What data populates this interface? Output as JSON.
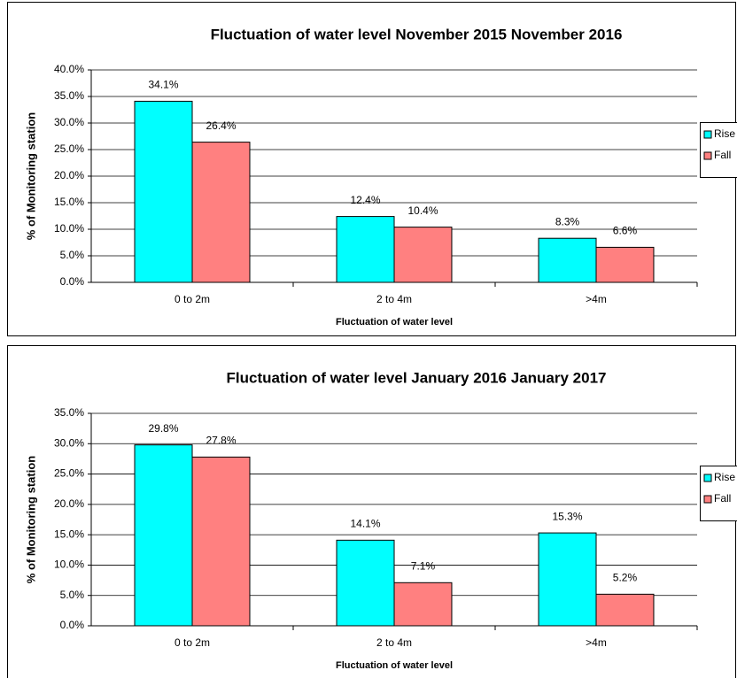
{
  "chart_data": [
    {
      "type": "bar",
      "title": "Fluctuation of water level November 2015 November 2016",
      "x_label": "Fluctuation of water level",
      "y_label": "% of Monitoring station",
      "categories": [
        "0 to 2m",
        "2 to 4m",
        ">4m"
      ],
      "series": [
        {
          "name": "Rise",
          "color": "#00ffff",
          "values": [
            34.1,
            12.4,
            8.3
          ],
          "value_labels": [
            "34.1%",
            "12.4%",
            "8.3%"
          ]
        },
        {
          "name": "Fall",
          "color": "#ff8080",
          "values": [
            26.4,
            10.4,
            6.6
          ],
          "value_labels": [
            "26.4%",
            "10.4%",
            "6.6%"
          ]
        }
      ],
      "ylim": [
        0,
        40
      ],
      "yticks": [
        {
          "value": 0,
          "label": "0.0%"
        },
        {
          "value": 5,
          "label": "5.0%"
        },
        {
          "value": 10,
          "label": "10.0%"
        },
        {
          "value": 15,
          "label": "15.0%"
        },
        {
          "value": 20,
          "label": "20.0%"
        },
        {
          "value": 25,
          "label": "25.0%"
        },
        {
          "value": 30,
          "label": "30.0%"
        },
        {
          "value": 35,
          "label": "35.0%"
        },
        {
          "value": 40,
          "label": "40.0%"
        }
      ],
      "grid": true,
      "legend": "right"
    },
    {
      "type": "bar",
      "title": "Fluctuation of water level January 2016 January 2017",
      "x_label": "Fluctuation of water level",
      "y_label": "% of Monitoring station",
      "categories": [
        "0 to 2m",
        "2 to 4m",
        ">4m"
      ],
      "series": [
        {
          "name": "Rise",
          "color": "#00ffff",
          "values": [
            29.8,
            14.1,
            15.3
          ],
          "value_labels": [
            "29.8%",
            "14.1%",
            "15.3%"
          ]
        },
        {
          "name": "Fall",
          "color": "#ff8080",
          "values": [
            27.8,
            7.1,
            5.2
          ],
          "value_labels": [
            "27.8%",
            "7.1%",
            "5.2%"
          ]
        }
      ],
      "ylim": [
        0,
        35
      ],
      "yticks": [
        {
          "value": 0,
          "label": "0.0%"
        },
        {
          "value": 5,
          "label": "5.0%"
        },
        {
          "value": 10,
          "label": "10.0%"
        },
        {
          "value": 15,
          "label": "15.0%"
        },
        {
          "value": 20,
          "label": "20.0%"
        },
        {
          "value": 25,
          "label": "25.0%"
        },
        {
          "value": 30,
          "label": "30.0%"
        },
        {
          "value": 35,
          "label": "35.0%"
        }
      ],
      "grid": true,
      "legend": "right"
    }
  ]
}
